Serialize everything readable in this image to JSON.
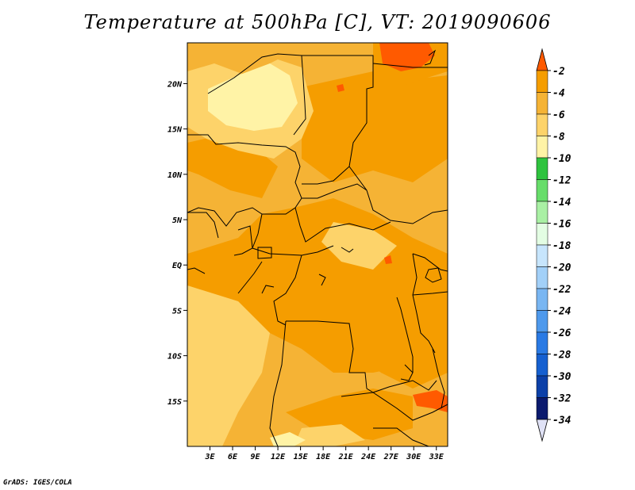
{
  "title": "Temperature at 500hPa [C], VT: 2019090606",
  "credit": "GrADS: IGES/COLA",
  "map": {
    "lon_range": [
      0,
      34.5
    ],
    "lat_range": [
      -20,
      24.5
    ],
    "x_ticks": [
      {
        "value": 3,
        "label": "3E"
      },
      {
        "value": 6,
        "label": "6E"
      },
      {
        "value": 9,
        "label": "9E"
      },
      {
        "value": 12,
        "label": "12E"
      },
      {
        "value": 15,
        "label": "15E"
      },
      {
        "value": 18,
        "label": "18E"
      },
      {
        "value": 21,
        "label": "21E"
      },
      {
        "value": 24,
        "label": "24E"
      },
      {
        "value": 27,
        "label": "27E"
      },
      {
        "value": 30,
        "label": "30E"
      },
      {
        "value": 33,
        "label": "33E"
      }
    ],
    "y_ticks": [
      {
        "value": 20,
        "label": "20N"
      },
      {
        "value": 15,
        "label": "15N"
      },
      {
        "value": 10,
        "label": "10N"
      },
      {
        "value": 5,
        "label": "5N"
      },
      {
        "value": 0,
        "label": "EQ"
      },
      {
        "value": -5,
        "label": "5S"
      },
      {
        "value": -10,
        "label": "10S"
      },
      {
        "value": -15,
        "label": "15S"
      }
    ],
    "base_color": "#f5b335"
  },
  "colorbar": {
    "labels": [
      "-2",
      "-4",
      "-6",
      "-8",
      "-10",
      "-12",
      "-14",
      "-16",
      "-18",
      "-20",
      "-22",
      "-24",
      "-26",
      "-28",
      "-30",
      "-32",
      "-34"
    ],
    "colors": [
      "#ff5a00",
      "#f59d00",
      "#f5b335",
      "#fdd36a",
      "#fff3a6",
      "#2ec33e",
      "#67dd6a",
      "#a9f0a4",
      "#e3fde3",
      "#c7e5fc",
      "#a2d0f8",
      "#79b6f2",
      "#4e99ec",
      "#2a7ae4",
      "#1660d0",
      "#0c40a8",
      "#0b1a6e",
      "#e0e2f6"
    ]
  }
}
